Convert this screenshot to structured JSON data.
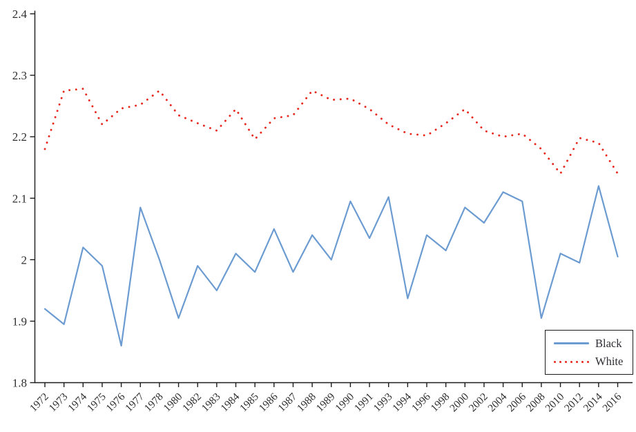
{
  "chart_data": {
    "type": "line",
    "title": "",
    "xlabel": "",
    "ylabel": "",
    "categories": [
      "1972",
      "1973",
      "1974",
      "1975",
      "1976",
      "1977",
      "1978",
      "1980",
      "1982",
      "1983",
      "1984",
      "1985",
      "1986",
      "1987",
      "1988",
      "1989",
      "1990",
      "1991",
      "1993",
      "1994",
      "1996",
      "1998",
      "2000",
      "2002",
      "2004",
      "2006",
      "2008",
      "2010",
      "2012",
      "2014",
      "2016"
    ],
    "series": [
      {
        "name": "Black",
        "style": "solid",
        "color": "#6b9bd1",
        "values": [
          1.92,
          1.895,
          2.02,
          1.99,
          1.86,
          2.085,
          2.0,
          1.905,
          1.99,
          1.95,
          2.01,
          1.98,
          2.05,
          1.98,
          2.04,
          2.0,
          2.095,
          2.035,
          2.102,
          1.937,
          2.04,
          2.015,
          2.085,
          2.06,
          2.11,
          2.095,
          1.905,
          2.01,
          1.995,
          2.12,
          2.005
        ]
      },
      {
        "name": "White",
        "style": "dotted",
        "color": "#e8281e",
        "values": [
          2.18,
          2.275,
          2.278,
          2.22,
          2.246,
          2.252,
          2.275,
          2.235,
          2.222,
          2.21,
          2.245,
          2.196,
          2.23,
          2.235,
          2.275,
          2.26,
          2.262,
          2.245,
          2.22,
          2.205,
          2.202,
          2.222,
          2.245,
          2.21,
          2.2,
          2.205,
          2.18,
          2.14,
          2.198,
          2.19,
          2.14
        ]
      }
    ],
    "ylim": [
      1.8,
      2.4
    ],
    "ytick_labels": [
      "1.8",
      "1.9",
      "2",
      "2.1",
      "2.2",
      "2.3",
      "2.4"
    ],
    "ytick_values": [
      1.8,
      1.9,
      2.0,
      2.1,
      2.2,
      2.3,
      2.4
    ],
    "grid": false,
    "legend_position": "bottom-right",
    "axis_color": "#1b1b1b",
    "tick_label_color": "#2e2e2e"
  }
}
